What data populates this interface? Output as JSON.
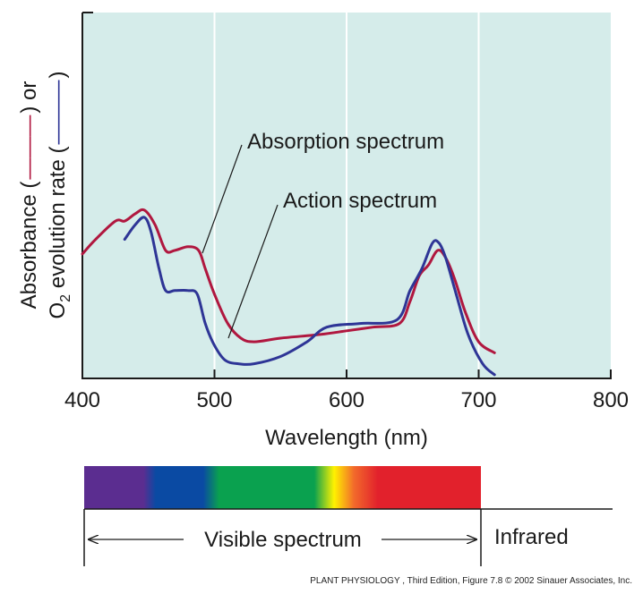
{
  "chart_data": {
    "type": "line",
    "title": "",
    "xlabel": "Wavelength (nm)",
    "ylabel_line1_prefix": "Absorbance (",
    "ylabel_line1_suffix": ") or",
    "ylabel_line2_prefix": "O",
    "ylabel_line2_sub": "2",
    "ylabel_line2_mid": " evolution rate (",
    "ylabel_line2_suffix": ")",
    "xlim": [
      400,
      800
    ],
    "ylim": [
      0,
      1
    ],
    "grid": "vertical",
    "xticks": [
      400,
      500,
      600,
      700,
      800
    ],
    "xtick_labels": [
      "400",
      "500",
      "600",
      "700",
      "800"
    ],
    "series": [
      {
        "name": "Absorption spectrum",
        "color": "#b0173f",
        "x": [
          400,
          410,
          425,
          432,
          440,
          447,
          455,
          463,
          470,
          480,
          488,
          493,
          500,
          510,
          520,
          530,
          550,
          580,
          600,
          620,
          640,
          648,
          655,
          662,
          669,
          675,
          682,
          690,
          700,
          712
        ],
        "y": [
          0.34,
          0.38,
          0.43,
          0.43,
          0.45,
          0.46,
          0.42,
          0.35,
          0.35,
          0.36,
          0.35,
          0.3,
          0.23,
          0.15,
          0.11,
          0.1,
          0.11,
          0.12,
          0.13,
          0.14,
          0.15,
          0.21,
          0.28,
          0.31,
          0.35,
          0.33,
          0.27,
          0.18,
          0.1,
          0.07
        ]
      },
      {
        "name": "Action spectrum",
        "color": "#2e3596",
        "x": [
          432,
          440,
          447,
          452,
          458,
          463,
          470,
          480,
          487,
          493,
          500,
          508,
          518,
          530,
          550,
          570,
          585,
          610,
          638,
          648,
          657,
          665,
          670,
          675,
          683,
          692,
          703,
          712
        ],
        "y": [
          0.38,
          0.42,
          0.44,
          0.4,
          0.3,
          0.24,
          0.24,
          0.24,
          0.23,
          0.15,
          0.09,
          0.05,
          0.04,
          0.04,
          0.06,
          0.1,
          0.14,
          0.15,
          0.16,
          0.24,
          0.3,
          0.37,
          0.37,
          0.33,
          0.23,
          0.12,
          0.04,
          0.01
        ]
      }
    ],
    "annotations": [
      "Absorption spectrum",
      "Action spectrum"
    ],
    "spectrum_bar": {
      "visible_label": "Visible spectrum",
      "infrared_label": "Infrared",
      "bands": [
        {
          "name": "violet",
          "color": "#5b2d90"
        },
        {
          "name": "blue",
          "color": "#0a4aa3"
        },
        {
          "name": "green",
          "color": "#0aa14f"
        },
        {
          "name": "yellow",
          "color": "#fff200"
        },
        {
          "name": "orange",
          "color": "#f26a2b"
        },
        {
          "name": "red",
          "color": "#e2212c"
        }
      ]
    },
    "plot_background": "#d5ecea"
  },
  "credit": {
    "text": "PLANT PHYSIOLOGY , Third Edition, Figure 7.8  © 2002 Sinauer Associates, Inc."
  }
}
